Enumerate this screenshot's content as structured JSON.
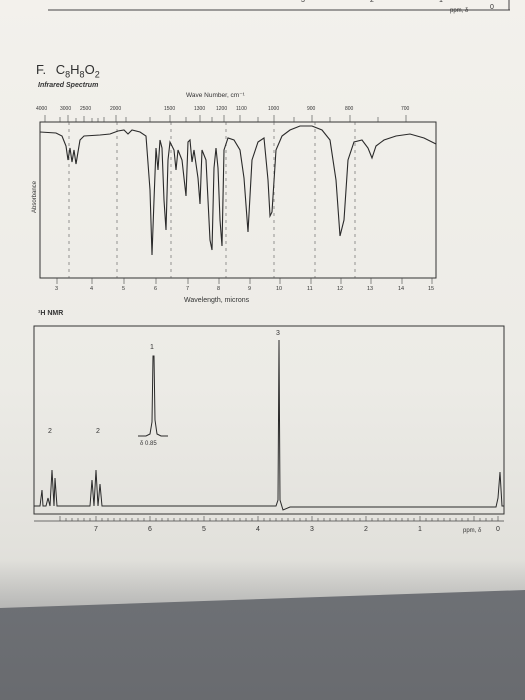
{
  "top_strip": {
    "ticks": [
      "3",
      "2",
      "1"
    ],
    "ppm_label": "ppm, δ",
    "zero": "0"
  },
  "problem": {
    "label": "F.",
    "formula": {
      "c": "C",
      "c_n": "8",
      "h": "H",
      "h_n": "8",
      "o": "O",
      "o_n": "2"
    }
  },
  "ir": {
    "section_title": "Infrared Spectrum",
    "top_axis_title": "Wave Number, cm⁻¹",
    "top_ticks": [
      "4000",
      "3000",
      "2500",
      "2000",
      "1500",
      "1300",
      "1200",
      "1100",
      "1000",
      "900",
      "800",
      "700"
    ],
    "y_label": "Absorbance",
    "bottom_ticks": [
      "3",
      "4",
      "5",
      "6",
      "7",
      "8",
      "9",
      "10",
      "11",
      "12",
      "13",
      "14",
      "15"
    ],
    "bottom_axis_title": "Wavelength, microns"
  },
  "nmr": {
    "section_title": "¹H NMR",
    "integrations": [
      "2",
      "2",
      "1",
      "3"
    ],
    "inset_label": "δ 0.85",
    "ticks": [
      "7",
      "6",
      "5",
      "4",
      "3",
      "2",
      "1",
      "0"
    ],
    "ppm_label": "ppm, δ"
  }
}
